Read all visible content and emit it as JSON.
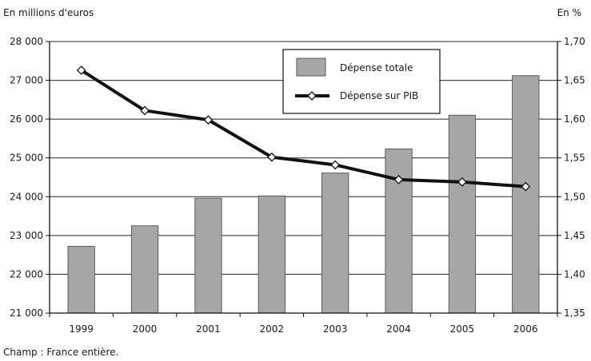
{
  "chart_data": {
    "type": "bar+line",
    "categories": [
      "1999",
      "2000",
      "2001",
      "2002",
      "2003",
      "2004",
      "2005",
      "2006"
    ],
    "series": [
      {
        "name": "Dépense totale",
        "type": "bar",
        "axis": "left",
        "values": [
          22720,
          23250,
          23960,
          24020,
          24610,
          25230,
          26100,
          27120
        ]
      },
      {
        "name": "Dépense sur PIB",
        "type": "line",
        "axis": "right",
        "values": [
          1.663,
          1.611,
          1.599,
          1.551,
          1.541,
          1.522,
          1.519,
          1.513
        ]
      }
    ],
    "left_axis": {
      "label": "En millions d'euros",
      "range": [
        21000,
        28000
      ],
      "ticks": [
        21000,
        22000,
        23000,
        24000,
        25000,
        26000,
        27000,
        28000
      ],
      "tick_labels": [
        "21 000",
        "22 000",
        "23 000",
        "24 000",
        "25 000",
        "26 000",
        "27 000",
        "28 000"
      ]
    },
    "right_axis": {
      "label": "En %",
      "range": [
        1.35,
        1.7
      ],
      "ticks": [
        1.35,
        1.4,
        1.45,
        1.5,
        1.55,
        1.6,
        1.65,
        1.7
      ],
      "tick_labels": [
        "1,35",
        "1,40",
        "1,45",
        "1,50",
        "1,55",
        "1,60",
        "1,65",
        "1,70"
      ]
    },
    "grid": true,
    "legend_position": "top-right",
    "colors": {
      "bar": "#a6a6a6",
      "line": "#111111",
      "marker_fill": "#ffffff"
    }
  },
  "footnote": "Champ : France entière."
}
